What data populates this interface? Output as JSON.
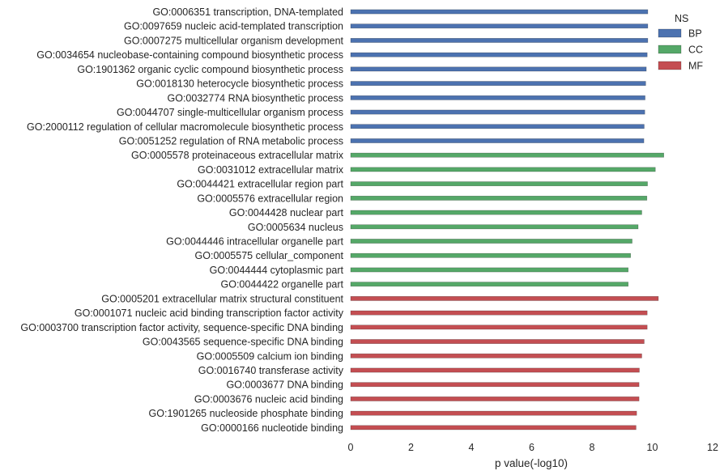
{
  "chart_data": {
    "type": "bar",
    "orientation": "horizontal",
    "xlabel": "p value(-log10)",
    "ylabel": "",
    "xlim": [
      0,
      12
    ],
    "xticks": [
      0,
      2,
      4,
      6,
      8,
      10,
      12
    ],
    "grid": false,
    "legend": {
      "title": "NS",
      "placement": "top-right",
      "entries": [
        {
          "name": "BP",
          "color": "#4c72b0"
        },
        {
          "name": "CC",
          "color": "#55a868"
        },
        {
          "name": "MF",
          "color": "#c44e52"
        }
      ]
    },
    "bars": [
      {
        "label": "GO:0006351 transcription, DNA-templated",
        "group": "BP",
        "value": 9.85
      },
      {
        "label": "GO:0097659 nucleic acid-templated transcription",
        "group": "BP",
        "value": 9.85
      },
      {
        "label": "GO:0007275 multicellular organism development",
        "group": "BP",
        "value": 9.85
      },
      {
        "label": "GO:0034654 nucleobase-containing compound biosynthetic process",
        "group": "BP",
        "value": 9.83
      },
      {
        "label": "GO:1901362 organic cyclic compound biosynthetic process",
        "group": "BP",
        "value": 9.8
      },
      {
        "label": "GO:0018130 heterocycle biosynthetic process",
        "group": "BP",
        "value": 9.78
      },
      {
        "label": "GO:0032774 RNA biosynthetic process",
        "group": "BP",
        "value": 9.76
      },
      {
        "label": "GO:0044707 single-multicellular organism process",
        "group": "BP",
        "value": 9.75
      },
      {
        "label": "GO:2000112 regulation of cellular macromolecule biosynthetic process",
        "group": "BP",
        "value": 9.73
      },
      {
        "label": "GO:0051252 regulation of RNA metabolic process",
        "group": "BP",
        "value": 9.72
      },
      {
        "label": "GO:0005578 proteinaceous extracellular matrix",
        "group": "CC",
        "value": 10.38
      },
      {
        "label": "GO:0031012 extracellular matrix",
        "group": "CC",
        "value": 10.1
      },
      {
        "label": "GO:0044421 extracellular region part",
        "group": "CC",
        "value": 9.84
      },
      {
        "label": "GO:0005576 extracellular region",
        "group": "CC",
        "value": 9.82
      },
      {
        "label": "GO:0044428 nuclear part",
        "group": "CC",
        "value": 9.65
      },
      {
        "label": "GO:0005634 nucleus",
        "group": "CC",
        "value": 9.53
      },
      {
        "label": "GO:0044446 intracellular organelle part",
        "group": "CC",
        "value": 9.33
      },
      {
        "label": "GO:0005575 cellular_component",
        "group": "CC",
        "value": 9.28
      },
      {
        "label": "GO:0044444 cytoplasmic part",
        "group": "CC",
        "value": 9.2
      },
      {
        "label": "GO:0044422 organelle part",
        "group": "CC",
        "value": 9.2
      },
      {
        "label": "GO:0005201 extracellular matrix structural constituent",
        "group": "MF",
        "value": 10.2
      },
      {
        "label": "GO:0001071 nucleic acid binding transcription factor activity",
        "group": "MF",
        "value": 9.83
      },
      {
        "label": "GO:0003700 transcription factor activity, sequence-specific DNA binding",
        "group": "MF",
        "value": 9.83
      },
      {
        "label": "GO:0043565 sequence-specific DNA binding",
        "group": "MF",
        "value": 9.73
      },
      {
        "label": "GO:0005509 calcium ion binding",
        "group": "MF",
        "value": 9.65
      },
      {
        "label": "GO:0016740 transferase activity",
        "group": "MF",
        "value": 9.57
      },
      {
        "label": "GO:0003677 DNA binding",
        "group": "MF",
        "value": 9.56
      },
      {
        "label": "GO:0003676 nucleic acid binding",
        "group": "MF",
        "value": 9.56
      },
      {
        "label": "GO:1901265 nucleoside phosphate binding",
        "group": "MF",
        "value": 9.48
      },
      {
        "label": "GO:0000166 nucleotide binding",
        "group": "MF",
        "value": 9.46
      }
    ]
  }
}
